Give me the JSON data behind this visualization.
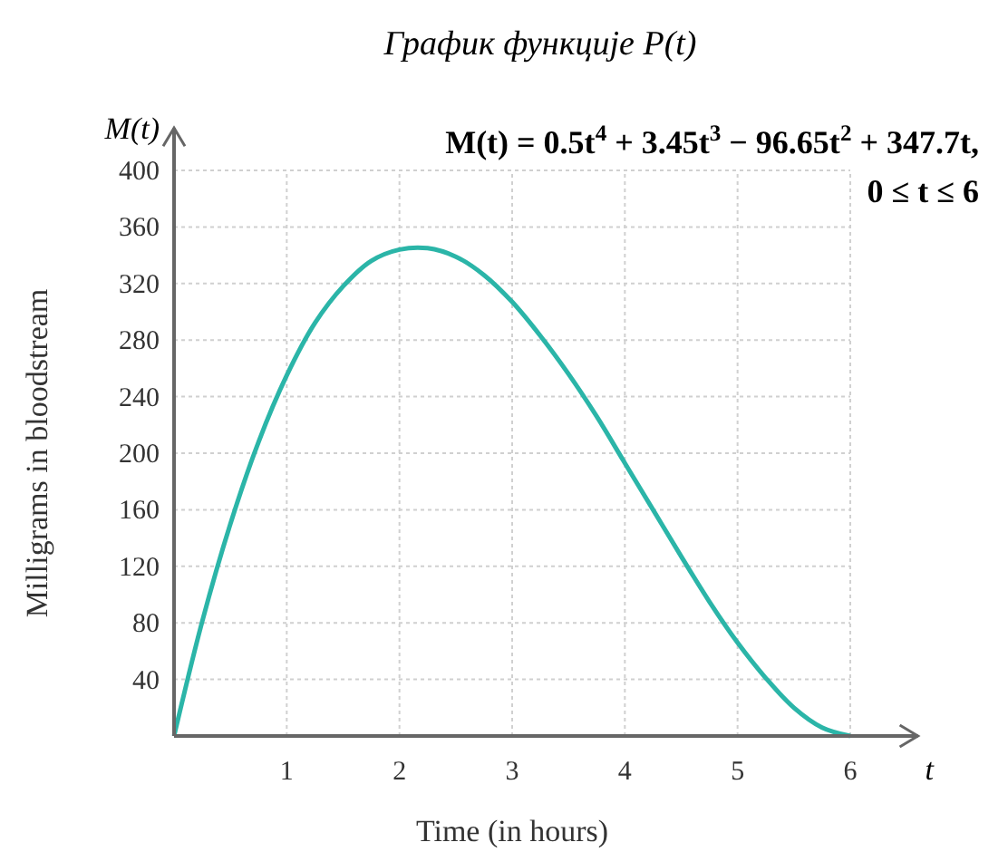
{
  "chart_data": {
    "type": "line",
    "title": "График функције P(t)",
    "xlabel": "Time (in hours)",
    "ylabel": "Milligrams in bloodstream",
    "annotations": [
      "M(t)",
      "t",
      "M(t) = 0.5t$^{4}$ + 3.45t$^{3}$ − 96.65t$^{2}$ + 347.7t,",
      "0 ≤ t ≤ 6"
    ],
    "x": [
      0,
      0.25,
      0.5,
      0.75,
      1,
      1.25,
      1.5,
      1.75,
      2,
      2.25,
      2.5,
      2.75,
      3,
      3.25,
      3.5,
      3.75,
      4,
      4.25,
      4.5,
      4.75,
      5,
      5.25,
      5.5,
      5.75,
      6
    ],
    "series": [
      {
        "color": "#2bb5a8",
        "values": [
          0,
          81,
          150,
          208,
          255,
          292,
          318,
          336,
          344,
          345,
          339,
          326,
          307,
          283,
          256,
          226,
          193,
          160,
          127,
          95,
          66,
          41,
          20,
          6,
          0
        ]
      }
    ],
    "xlim": [
      0,
      6.6
    ],
    "ylim": [
      0,
      430
    ],
    "xticks": [
      1,
      2,
      3,
      4,
      5,
      6
    ],
    "yticks": [
      40,
      80,
      120,
      160,
      200,
      240,
      280,
      320,
      360,
      400
    ],
    "grid": true,
    "marker": "none",
    "line_style": "solid"
  }
}
